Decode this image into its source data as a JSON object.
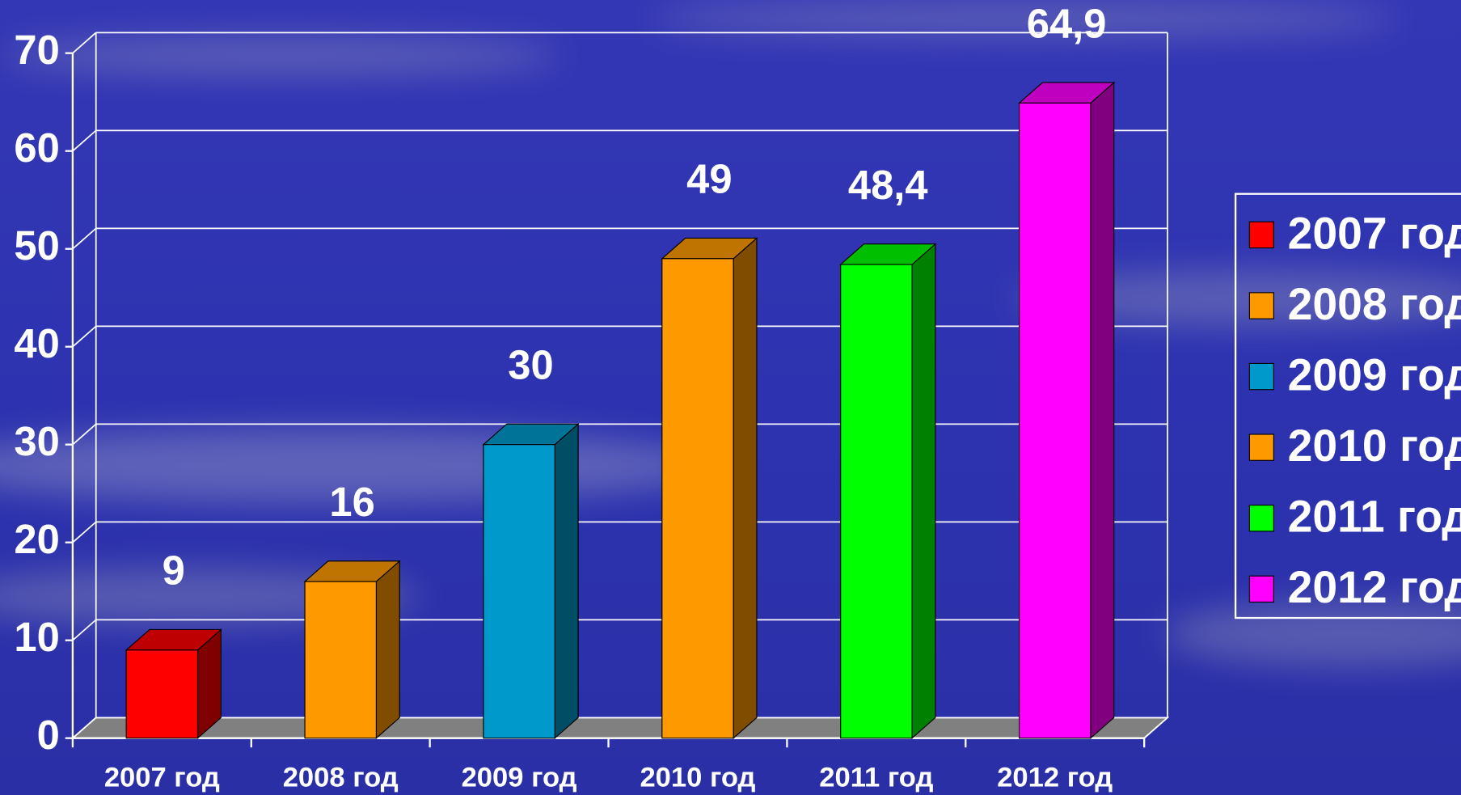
{
  "chart_data": {
    "type": "bar3d",
    "categories": [
      "2007 год",
      "2008 год",
      "2009 год",
      "2010 год",
      "2011 год",
      "2012 год"
    ],
    "values": [
      9,
      16,
      30,
      49,
      48.4,
      64.9
    ],
    "value_labels": [
      "9",
      "16",
      "30",
      "49",
      "48,4",
      "64,9"
    ],
    "colors": [
      "#ff0000",
      "#ff9900",
      "#0099cc",
      "#ff9900",
      "#00ff00",
      "#ff00ff"
    ],
    "ylim": [
      0,
      70
    ],
    "yticks": [
      0,
      10,
      20,
      30,
      40,
      50,
      60,
      70
    ],
    "grid": true,
    "legend": "right"
  }
}
